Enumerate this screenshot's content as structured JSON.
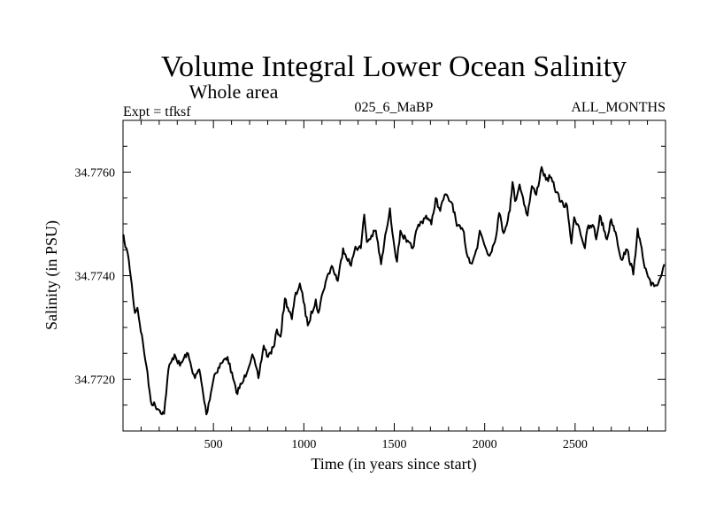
{
  "chart_data": {
    "type": "line",
    "title": "Volume Integral Lower Ocean Salinity",
    "subtitle": "Whole area",
    "header_left": "Expt = tfksf",
    "header_center": "025_6_MaBP",
    "header_right": "ALL_MONTHS",
    "xlabel": "Time (in years since start)",
    "ylabel": "Salinity (in PSU)",
    "xlim": [
      0,
      3000
    ],
    "ylim": [
      34.771,
      34.777
    ],
    "xticks_major": [
      500,
      1000,
      1500,
      2000,
      2500
    ],
    "xtick_labels": [
      "500",
      "1000",
      "1500",
      "2000",
      "2500"
    ],
    "xtick_minor_step": 100,
    "yticks_major": [
      34.772,
      34.774,
      34.776
    ],
    "ytick_labels": [
      "34.7720",
      "34.7740",
      "34.7760"
    ],
    "ytick_minor_step": 0.0005,
    "grid": false,
    "line_color": "#000000",
    "series": [
      {
        "name": "salinity",
        "x": [
          0,
          6,
          32,
          66,
          80,
          129,
          154,
          227,
          251,
          285,
          315,
          354,
          398,
          422,
          461,
          505,
          544,
          578,
          627,
          666,
          715,
          749,
          778,
          802,
          837,
          851,
          871,
          895,
          934,
          949,
          978,
          998,
          1022,
          1066,
          1080,
          1105,
          1120,
          1154,
          1188,
          1217,
          1261,
          1285,
          1315,
          1334,
          1349,
          1398,
          1427,
          1456,
          1476,
          1495,
          1515,
          1534,
          1568,
          1602,
          1627,
          1676,
          1705,
          1729,
          1754,
          1778,
          1822,
          1846,
          1885,
          1900,
          1924,
          1959,
          1973,
          2022,
          2056,
          2080,
          2105,
          2139,
          2154,
          2168,
          2193,
          2237,
          2261,
          2285,
          2315,
          2339,
          2363,
          2398,
          2437,
          2456,
          2480,
          2495,
          2520,
          2554,
          2568,
          2602,
          2617,
          2637,
          2676,
          2700,
          2724,
          2754,
          2788,
          2822,
          2846,
          2885,
          2920,
          2949,
          2973,
          2993
        ],
        "y": [
          34.77475,
          34.7747,
          34.77431,
          34.77328,
          34.77338,
          34.77226,
          34.77157,
          34.77133,
          34.77219,
          34.77248,
          34.77226,
          34.77251,
          34.77202,
          34.77219,
          34.77132,
          34.77208,
          34.77231,
          34.77243,
          34.77174,
          34.77197,
          34.77248,
          34.77202,
          34.77265,
          34.77243,
          34.77265,
          34.77296,
          34.77282,
          34.77356,
          34.77316,
          34.77356,
          34.77385,
          34.7735,
          34.77304,
          34.77354,
          34.77328,
          34.77368,
          34.77388,
          34.77419,
          34.7739,
          34.77453,
          34.77419,
          34.77456,
          34.77453,
          34.77518,
          34.77465,
          34.77487,
          34.77422,
          34.77487,
          34.7753,
          34.7747,
          34.77427,
          34.77487,
          34.77465,
          34.77453,
          34.77492,
          34.77516,
          34.77499,
          34.7755,
          34.77525,
          34.77556,
          34.77539,
          34.77496,
          34.77484,
          34.77444,
          34.77424,
          34.77453,
          34.77487,
          34.77439,
          34.77465,
          34.77521,
          34.77482,
          34.77525,
          34.77581,
          34.77544,
          34.77576,
          34.77516,
          34.77573,
          34.77556,
          34.7761,
          34.77585,
          34.7759,
          34.77561,
          34.77533,
          34.77535,
          34.77462,
          34.77513,
          34.77496,
          34.77453,
          34.77491,
          34.77496,
          34.7747,
          34.77516,
          34.7747,
          34.77509,
          34.77484,
          34.77432,
          34.7745,
          34.77402,
          34.77491,
          34.77415,
          34.77381,
          34.77381,
          34.77397,
          34.77422
        ]
      }
    ]
  }
}
